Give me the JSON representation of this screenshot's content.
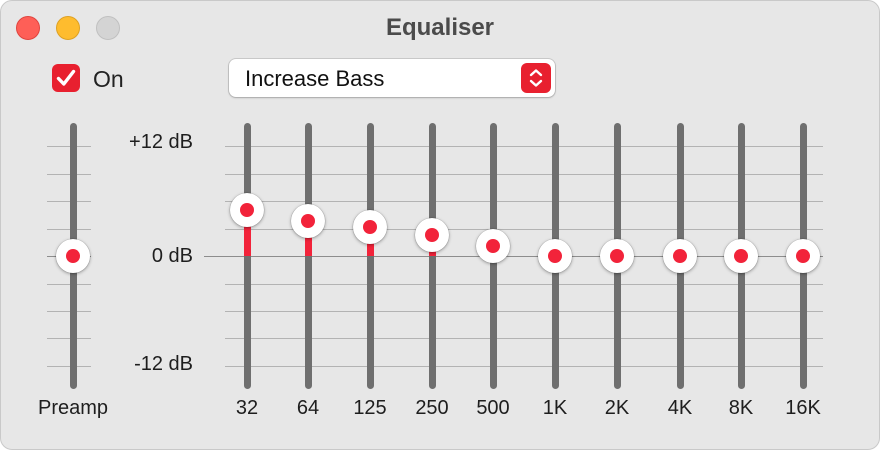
{
  "window": {
    "title": "Equaliser"
  },
  "controls": {
    "enabled_label": "On",
    "enabled": true,
    "preset": "Increase Bass"
  },
  "scale": {
    "max_label": "+12 dB",
    "zero_label": "0 dB",
    "min_label": "-12 dB",
    "range_db": [
      -12,
      12
    ]
  },
  "preamp": {
    "label": "Preamp",
    "gain_db": 0
  },
  "bands": [
    {
      "label": "32",
      "gain_db": 5.0
    },
    {
      "label": "64",
      "gain_db": 3.8
    },
    {
      "label": "125",
      "gain_db": 3.2
    },
    {
      "label": "250",
      "gain_db": 2.3
    },
    {
      "label": "500",
      "gain_db": 1.1
    },
    {
      "label": "1K",
      "gain_db": 0
    },
    {
      "label": "2K",
      "gain_db": 0
    },
    {
      "label": "4K",
      "gain_db": 0
    },
    {
      "label": "8K",
      "gain_db": 0
    },
    {
      "label": "16K",
      "gain_db": 0
    }
  ],
  "colors": {
    "accent": "#e8202f",
    "track": "#6f6f6f",
    "window_bg": "#e7e7e7"
  }
}
